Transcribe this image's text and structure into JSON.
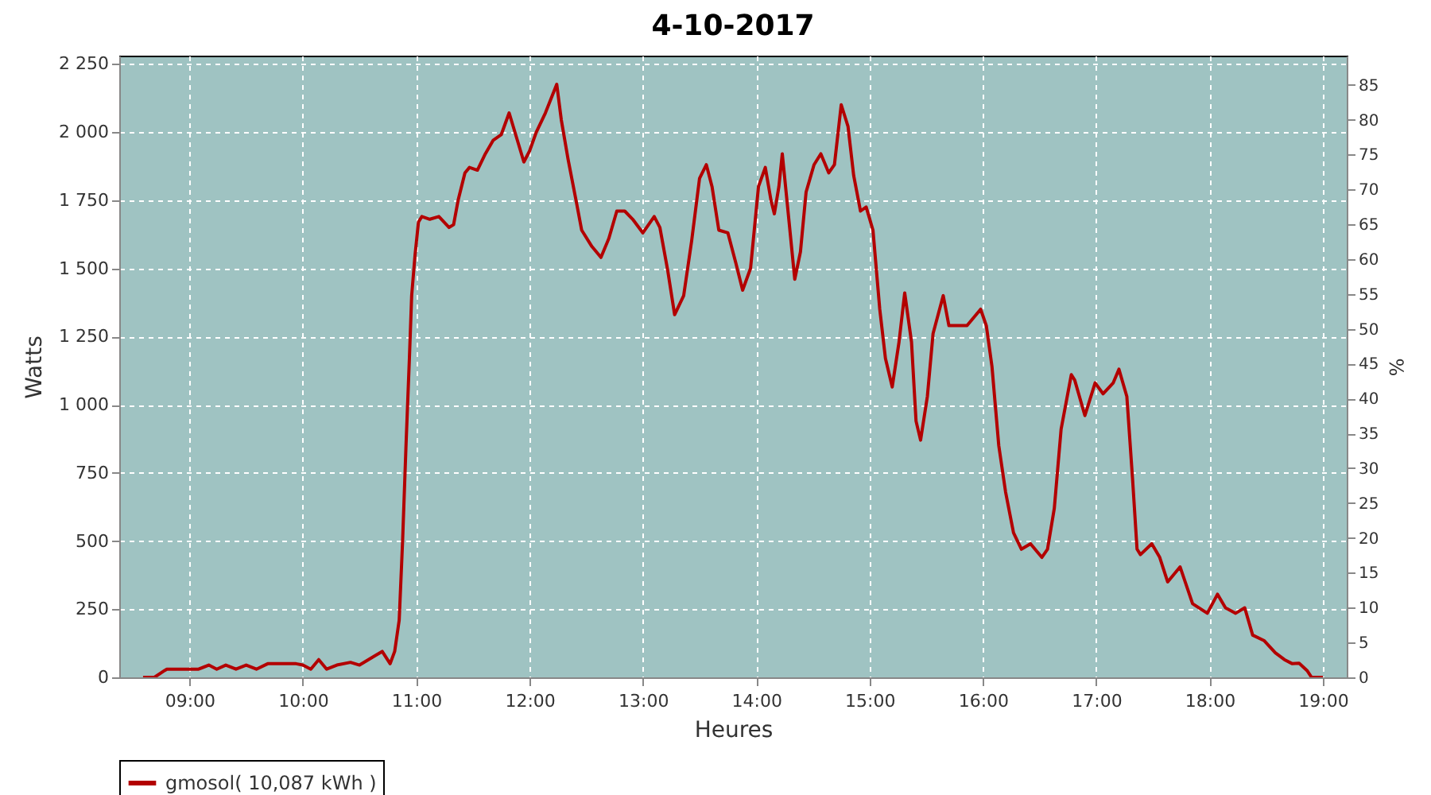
{
  "chart_data": {
    "type": "line",
    "title": "4-10-2017",
    "xlabel": "Heures",
    "ylabel": "Watts",
    "y2label": "%",
    "x": [
      8.59,
      8.69,
      8.78,
      8.8,
      9.08,
      9.17,
      9.24,
      9.32,
      9.41,
      9.5,
      9.59,
      9.69,
      9.94,
      10.0,
      10.07,
      10.14,
      10.21,
      10.3,
      10.42,
      10.5,
      10.64,
      10.7,
      10.77,
      10.81,
      10.85,
      10.88,
      10.91,
      10.94,
      10.96,
      10.99,
      11.02,
      11.05,
      11.12,
      11.2,
      11.29,
      11.33,
      11.37,
      11.43,
      11.47,
      11.54,
      11.61,
      11.68,
      11.75,
      11.82,
      11.95,
      12.0,
      12.06,
      12.14,
      12.24,
      12.28,
      12.34,
      12.41,
      12.46,
      12.55,
      12.63,
      12.7,
      12.77,
      12.84,
      12.91,
      13.0,
      13.1,
      13.15,
      13.22,
      13.28,
      13.36,
      13.43,
      13.5,
      13.56,
      13.61,
      13.67,
      13.75,
      13.82,
      13.88,
      13.95,
      14.02,
      14.08,
      14.13,
      14.16,
      14.2,
      14.23,
      14.29,
      14.34,
      14.39,
      14.44,
      14.51,
      14.57,
      14.64,
      14.69,
      14.75,
      14.81,
      14.86,
      14.92,
      14.97,
      15.03,
      15.09,
      15.14,
      15.2,
      15.26,
      15.31,
      15.37,
      15.41,
      15.45,
      15.51,
      15.56,
      15.65,
      15.7,
      15.77,
      15.86,
      15.98,
      16.03,
      16.08,
      16.14,
      16.2,
      16.27,
      16.34,
      16.42,
      16.48,
      16.52,
      16.57,
      16.63,
      16.69,
      16.78,
      16.81,
      16.9,
      16.99,
      17.06,
      17.15,
      17.2,
      17.27,
      17.32,
      17.36,
      17.39,
      17.49,
      17.56,
      17.63,
      17.74,
      17.85,
      17.98,
      18.07,
      18.14,
      18.23,
      18.31,
      18.38,
      18.48,
      18.58,
      18.66,
      18.73,
      18.79,
      18.86,
      18.9,
      19.0
    ],
    "series": [
      {
        "name": "gmosol( 10,087 kWh )",
        "color": "#b30000",
        "values": [
          0,
          0,
          25,
          30,
          30,
          45,
          30,
          45,
          30,
          45,
          30,
          50,
          50,
          45,
          30,
          65,
          30,
          45,
          55,
          45,
          80,
          95,
          50,
          95,
          210,
          500,
          850,
          1170,
          1400,
          1550,
          1670,
          1690,
          1680,
          1690,
          1650,
          1660,
          1750,
          1850,
          1870,
          1860,
          1920,
          1970,
          1990,
          2070,
          1890,
          1930,
          2000,
          2070,
          2175,
          2045,
          1900,
          1750,
          1640,
          1580,
          1540,
          1610,
          1710,
          1710,
          1680,
          1630,
          1690,
          1650,
          1490,
          1330,
          1400,
          1600,
          1830,
          1880,
          1800,
          1640,
          1630,
          1520,
          1420,
          1500,
          1800,
          1870,
          1750,
          1700,
          1800,
          1920,
          1670,
          1460,
          1560,
          1780,
          1880,
          1920,
          1850,
          1880,
          2100,
          2020,
          1840,
          1710,
          1725,
          1640,
          1350,
          1170,
          1065,
          1230,
          1410,
          1230,
          940,
          870,
          1030,
          1260,
          1400,
          1290,
          1290,
          1290,
          1350,
          1290,
          1140,
          850,
          680,
          530,
          470,
          490,
          460,
          440,
          470,
          620,
          910,
          1110,
          1090,
          960,
          1080,
          1040,
          1080,
          1130,
          1030,
          730,
          470,
          450,
          490,
          440,
          350,
          405,
          270,
          235,
          305,
          255,
          235,
          255,
          155,
          135,
          90,
          65,
          50,
          52,
          25,
          0,
          0
        ]
      }
    ],
    "xlim": [
      8.38,
      19.21
    ],
    "xticks": [
      {
        "value": 9,
        "label": "09:00"
      },
      {
        "value": 10,
        "label": "10:00"
      },
      {
        "value": 11,
        "label": "11:00"
      },
      {
        "value": 12,
        "label": "12:00"
      },
      {
        "value": 13,
        "label": "13:00"
      },
      {
        "value": 14,
        "label": "14:00"
      },
      {
        "value": 15,
        "label": "15:00"
      },
      {
        "value": 16,
        "label": "16:00"
      },
      {
        "value": 17,
        "label": "17:00"
      },
      {
        "value": 18,
        "label": "18:00"
      },
      {
        "value": 19,
        "label": "19:00"
      }
    ],
    "ylim": [
      0,
      2280
    ],
    "yticks": [
      0,
      250,
      500,
      750,
      {
        "value": 1000,
        "label": "1 000"
      },
      {
        "value": 1250,
        "label": "1 250"
      },
      {
        "value": 1500,
        "label": "1 500"
      },
      {
        "value": 1750,
        "label": "1 750"
      },
      {
        "value": 2000,
        "label": "2 000"
      },
      {
        "value": 2250,
        "label": "2 250"
      }
    ],
    "y2lim": [
      0,
      89.2
    ],
    "y2ticks": [
      0,
      5,
      10,
      15,
      20,
      25,
      30,
      35,
      40,
      45,
      50,
      55,
      60,
      65,
      70,
      75,
      80,
      85
    ],
    "grid": true,
    "legend": "bottom",
    "line_style": "solid",
    "marker": "none"
  }
}
